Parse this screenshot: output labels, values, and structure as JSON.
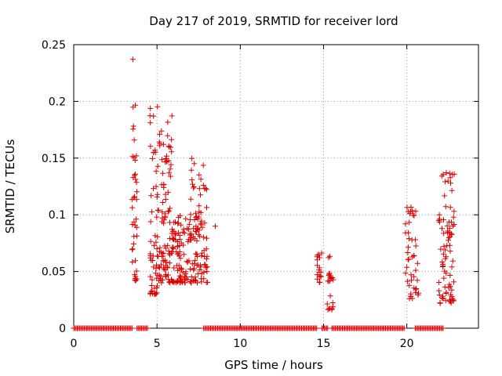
{
  "chart_data": {
    "type": "scatter",
    "title": "Day 217 of 2019, SRMTID for receiver lord",
    "xlabel": "GPS time / hours",
    "ylabel": "SRMTID / TECUs",
    "xlim": [
      0,
      24.3
    ],
    "ylim": [
      0,
      0.25
    ],
    "xticks": [
      0,
      5,
      10,
      15,
      20
    ],
    "xtick_labels": [
      "0",
      "5",
      "10",
      "15",
      "20"
    ],
    "yticks": [
      0,
      0.05,
      0.1,
      0.15,
      0.2,
      0.25
    ],
    "ytick_labels": [
      "0",
      "0.05",
      "0.1",
      "0.15",
      "0.2",
      "0.25"
    ],
    "grid": true,
    "marker": "+",
    "series": [
      {
        "name": "SRMTID",
        "color": "#dd0000",
        "clusters": [
          {
            "x_range": [
              3.5,
              3.8
            ],
            "y_range": [
              0.042,
              0.2
            ],
            "n": 40
          },
          {
            "x_range": [
              4.55,
              5.2
            ],
            "y_range": [
              0.03,
              0.196
            ],
            "n": 70
          },
          {
            "x_range": [
              5.2,
              5.9
            ],
            "y_range": [
              0.04,
              0.188
            ],
            "n": 80
          },
          {
            "x_range": [
              5.9,
              7.0
            ],
            "y_range": [
              0.04,
              0.1
            ],
            "n": 90
          },
          {
            "x_range": [
              7.0,
              8.0
            ],
            "y_range": [
              0.04,
              0.158
            ],
            "n": 90
          },
          {
            "x_range": [
              8.0,
              8.05
            ],
            "y_range": [
              0.04,
              0.09
            ],
            "n": 3
          },
          {
            "x_range": [
              14.6,
              14.9
            ],
            "y_range": [
              0.04,
              0.068
            ],
            "n": 18
          },
          {
            "x_range": [
              15.2,
              15.6
            ],
            "y_range": [
              0.016,
              0.064
            ],
            "n": 22
          },
          {
            "x_range": [
              19.9,
              20.7
            ],
            "y_range": [
              0.026,
              0.108
            ],
            "n": 45
          },
          {
            "x_range": [
              21.9,
              22.9
            ],
            "y_range": [
              0.022,
              0.138
            ],
            "n": 80
          }
        ],
        "extra_points": [
          {
            "x": 3.55,
            "y": 0.237
          },
          {
            "x": 8.5,
            "y": 0.09
          },
          {
            "x": 8.0,
            "y": 0.05
          },
          {
            "x": 22.0,
            "y": 0.022
          },
          {
            "x": 22.7,
            "y": 0.028
          }
        ],
        "zero_segments": [
          [
            0,
            3.5
          ],
          [
            3.8,
            4.5
          ],
          [
            7.8,
            14.6
          ],
          [
            14.9,
            15.3
          ],
          [
            15.5,
            19.9
          ],
          [
            20.5,
            22.2
          ]
        ]
      }
    ]
  }
}
